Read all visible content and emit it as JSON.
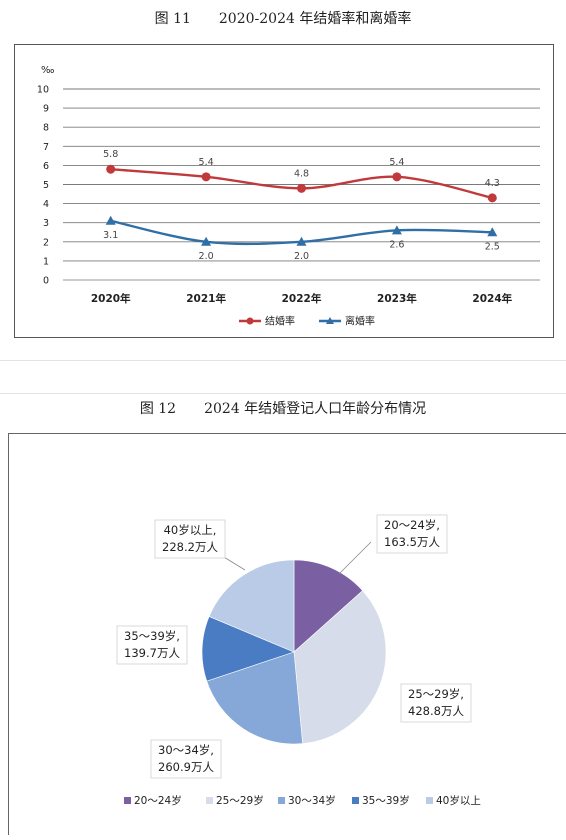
{
  "figures": [
    {
      "title": "图 11　　2020-2024 年结婚率和离婚率"
    },
    {
      "title": "图 12　　2024 年结婚登记人口年龄分布情况"
    }
  ],
  "chart_data": [
    {
      "type": "line",
      "title": "",
      "unit_label": "‰",
      "x": [
        "2020年",
        "2021年",
        "2022年",
        "2023年",
        "2024年"
      ],
      "ylim": [
        0,
        10
      ],
      "yticks": [
        0,
        1,
        2,
        3,
        4,
        5,
        6,
        7,
        8,
        9,
        10
      ],
      "grid": true,
      "legend_position": "bottom",
      "series": [
        {
          "name": "结婚率",
          "values": [
            5.8,
            5.4,
            4.8,
            5.4,
            4.3
          ],
          "labels": [
            "5.8",
            "5.4",
            "4.8",
            "5.4",
            "4.3"
          ],
          "color": "#c0393b",
          "marker": "circle"
        },
        {
          "name": "离婚率",
          "values": [
            3.1,
            2.0,
            2.0,
            2.6,
            2.5
          ],
          "labels": [
            "3.1",
            "2.0",
            "2.0",
            "2.6",
            "2.5"
          ],
          "color": "#2f6fa6",
          "marker": "triangle"
        }
      ]
    },
    {
      "type": "pie",
      "title": "",
      "legend_position": "bottom",
      "slices": [
        {
          "name": "20～24岁",
          "value": 163.5,
          "label_line1": "20～24岁,",
          "label_line2": "163.5万人",
          "color": "#7b5fa3"
        },
        {
          "name": "25～29岁",
          "value": 428.8,
          "label_line1": "25～29岁,",
          "label_line2": "428.8万人",
          "color": "#d7dcea"
        },
        {
          "name": "30～34岁",
          "value": 260.9,
          "label_line1": "30～34岁,",
          "label_line2": "260.9万人",
          "color": "#86a8d8"
        },
        {
          "name": "35～39岁",
          "value": 139.7,
          "label_line1": "35～39岁,",
          "label_line2": "139.7万人",
          "color": "#4a7cc4"
        },
        {
          "name": "40岁以上",
          "value": 228.2,
          "label_line1": "40岁以上,",
          "label_line2": "228.2万人",
          "color": "#b9cbe6"
        }
      ]
    }
  ]
}
